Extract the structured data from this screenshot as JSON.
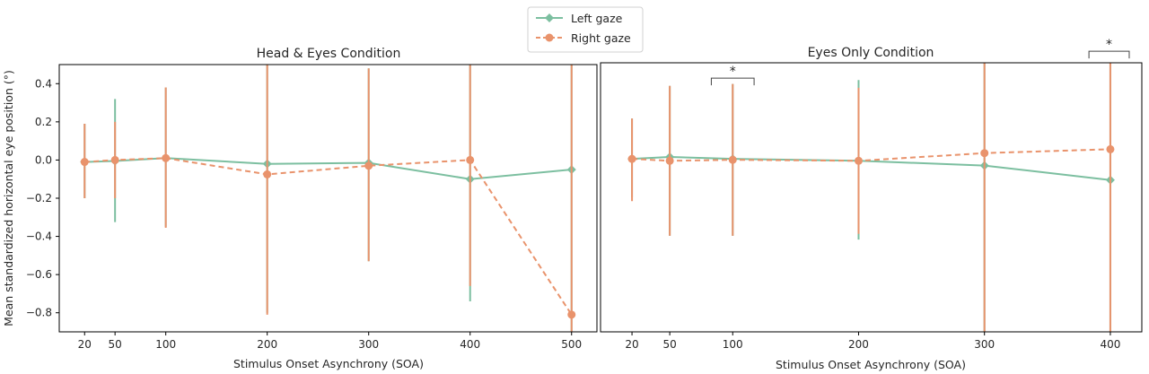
{
  "legend": {
    "placement": "top-center",
    "entries": [
      {
        "name": "Left gaze",
        "color": "#7cbfa0",
        "style": "solid"
      },
      {
        "name": "Right gaze",
        "color": "#e9936c",
        "style": "dashed"
      }
    ]
  },
  "chart_data": [
    {
      "type": "line",
      "title": "Head & Eyes Condition",
      "xlabel": "Stimulus Onset Asynchrony (SOA)",
      "ylabel": "Mean standardized horizontal eye position (°)",
      "xlim": [
        -5,
        525
      ],
      "ylim": [
        -0.9,
        0.5
      ],
      "xticks": [
        20,
        50,
        100,
        200,
        300,
        400,
        500
      ],
      "yticks": [
        0.4,
        0.2,
        0.0,
        -0.2,
        -0.4,
        -0.6,
        -0.8
      ],
      "ytick_labels": [
        "0.4",
        "0.2",
        "0.0",
        "−0.2",
        "−0.4",
        "−0.6",
        "−0.8"
      ],
      "grid": false,
      "series": [
        {
          "name": "Left gaze",
          "color": "#7cbfa0",
          "style": "solid",
          "x": [
            20,
            50,
            100,
            200,
            300,
            400,
            500
          ],
          "y": [
            -0.01,
            -0.005,
            0.01,
            -0.02,
            -0.015,
            -0.1,
            -0.05
          ],
          "err_low": [
            -0.2,
            -0.325,
            -0.35,
            -0.8,
            -0.53,
            -0.74,
            -0.9
          ],
          "err_high": [
            0.19,
            0.32,
            0.38,
            0.5,
            0.48,
            0.5,
            0.5
          ]
        },
        {
          "name": "Right gaze",
          "color": "#e9936c",
          "style": "dashed",
          "x": [
            20,
            50,
            100,
            200,
            300,
            400,
            500
          ],
          "y": [
            -0.01,
            0.0,
            0.01,
            -0.075,
            -0.03,
            0.0,
            -0.81
          ],
          "err_low": [
            -0.2,
            -0.2,
            -0.355,
            -0.81,
            -0.53,
            -0.66,
            -0.9
          ],
          "err_high": [
            0.19,
            0.2,
            0.38,
            0.5,
            0.48,
            0.5,
            0.5
          ]
        }
      ],
      "annotations": []
    },
    {
      "type": "line",
      "title": "Eyes Only Condition",
      "xlabel": "Stimulus Onset Asynchrony (SOA)",
      "ylabel": "",
      "xlim": [
        -5,
        425
      ],
      "ylim": [
        -0.9,
        0.5
      ],
      "xticks": [
        20,
        50,
        100,
        200,
        300,
        400
      ],
      "grid": false,
      "series": [
        {
          "name": "Left gaze",
          "color": "#7cbfa0",
          "style": "solid",
          "x": [
            20,
            50,
            100,
            200,
            300,
            400
          ],
          "y": [
            0.0,
            0.01,
            0.0,
            -0.01,
            -0.035,
            -0.11
          ],
          "err_low": [
            -0.2,
            -0.4,
            -0.4,
            -0.42,
            -0.9,
            -0.9
          ],
          "err_high": [
            0.21,
            0.38,
            0.39,
            0.41,
            0.5,
            0.5
          ]
        },
        {
          "name": "Right gaze",
          "color": "#e9936c",
          "style": "dashed",
          "x": [
            20,
            50,
            100,
            200,
            300,
            400
          ],
          "y": [
            0.0,
            -0.01,
            -0.005,
            -0.01,
            0.03,
            0.05
          ],
          "err_low": [
            -0.22,
            -0.4,
            -0.4,
            -0.39,
            -0.9,
            -0.9
          ],
          "err_high": [
            0.21,
            0.38,
            0.39,
            0.37,
            0.5,
            0.5
          ]
        }
      ],
      "annotations": [
        {
          "label": "*",
          "x_start": 83,
          "x_end": 117,
          "y": 0.42
        },
        {
          "label": "*",
          "x_start": 383,
          "x_end": 415,
          "y": 0.56
        }
      ]
    }
  ]
}
